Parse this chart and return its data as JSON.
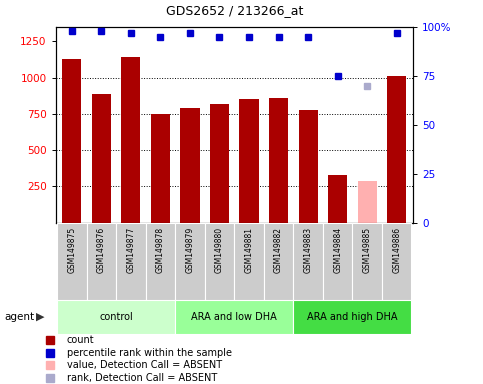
{
  "title": "GDS2652 / 213266_at",
  "samples": [
    "GSM149875",
    "GSM149876",
    "GSM149877",
    "GSM149878",
    "GSM149879",
    "GSM149880",
    "GSM149881",
    "GSM149882",
    "GSM149883",
    "GSM149884",
    "GSM149885",
    "GSM149886"
  ],
  "bar_values": [
    1130,
    890,
    1140,
    750,
    790,
    820,
    850,
    860,
    780,
    330,
    null,
    1010
  ],
  "absent_bar_values": [
    null,
    null,
    null,
    null,
    null,
    null,
    null,
    null,
    null,
    null,
    290,
    null
  ],
  "dot_values": [
    98,
    98,
    97,
    95,
    97,
    95,
    95,
    95,
    95,
    75,
    null,
    97
  ],
  "absent_dot_values": [
    null,
    null,
    null,
    null,
    null,
    null,
    null,
    null,
    null,
    null,
    70,
    null
  ],
  "bar_color": "#AA0000",
  "absent_bar_color": "#FFB0B0",
  "dot_color": "#0000CC",
  "absent_dot_color": "#AAAACC",
  "groups": [
    {
      "label": "control",
      "start": 0,
      "end": 3,
      "color": "#CCFFCC"
    },
    {
      "label": "ARA and low DHA",
      "start": 4,
      "end": 7,
      "color": "#99FF99"
    },
    {
      "label": "ARA and high DHA",
      "start": 8,
      "end": 11,
      "color": "#44DD44"
    }
  ],
  "ylim_left": [
    0,
    1350
  ],
  "ylim_right": [
    0,
    100
  ],
  "yticks_left": [
    250,
    500,
    750,
    1000,
    1250
  ],
  "yticks_right": [
    0,
    25,
    50,
    75,
    100
  ],
  "grid_values": [
    250,
    500,
    750,
    1000
  ],
  "background_color": "#FFFFFF",
  "legend_items": [
    {
      "color": "#AA0000",
      "label": "count"
    },
    {
      "color": "#0000CC",
      "label": "percentile rank within the sample"
    },
    {
      "color": "#FFB0B0",
      "label": "value, Detection Call = ABSENT"
    },
    {
      "color": "#AAAACC",
      "label": "rank, Detection Call = ABSENT"
    }
  ]
}
